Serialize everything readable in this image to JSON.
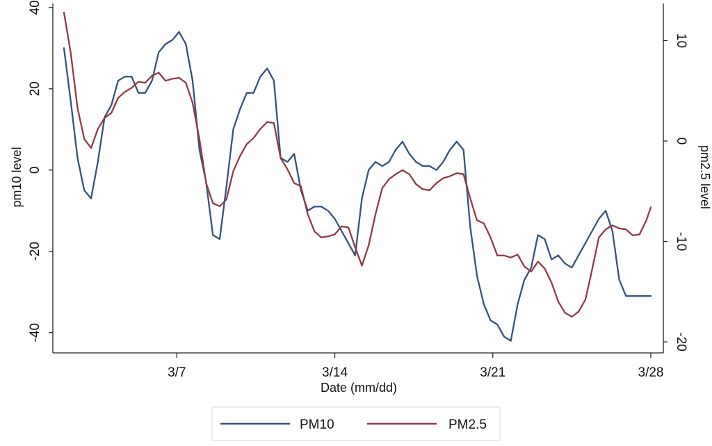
{
  "chart_data": {
    "type": "line",
    "title": "",
    "xlabel": "Date (mm/dd)",
    "ylabel_left": "pm10 level",
    "ylabel_right": "pm2.5 level",
    "x_unit": "day of month (March)",
    "xlim": [
      2,
      28
    ],
    "x_ticks": [
      {
        "value": 7,
        "label": "3/7"
      },
      {
        "value": 14,
        "label": "3/14"
      },
      {
        "value": 21,
        "label": "3/21"
      },
      {
        "value": 28,
        "label": "3/28"
      }
    ],
    "ylim_left": [
      -45,
      41
    ],
    "y_ticks_left": [
      {
        "value": 40,
        "label": "40"
      },
      {
        "value": 20,
        "label": "20"
      },
      {
        "value": 0,
        "label": "0"
      },
      {
        "value": -20,
        "label": "-20"
      },
      {
        "value": -40,
        "label": "-40"
      }
    ],
    "ylim_right": [
      -21.1,
      13.7
    ],
    "y_ticks_right": [
      {
        "value": 10,
        "label": "10"
      },
      {
        "value": 0,
        "label": "0"
      },
      {
        "value": -10,
        "label": "-10"
      },
      {
        "value": -20,
        "label": "-20"
      }
    ],
    "grid": false,
    "legend_position": "bottom",
    "series": [
      {
        "name": "PM10",
        "axis": "left",
        "color": "#34527a",
        "x": [
          2.0,
          2.3,
          2.6,
          2.9,
          3.2,
          3.5,
          3.8,
          4.1,
          4.4,
          4.7,
          5.0,
          5.3,
          5.6,
          5.9,
          6.2,
          6.5,
          6.8,
          7.1,
          7.4,
          7.7,
          8.0,
          8.3,
          8.6,
          8.9,
          9.2,
          9.5,
          9.8,
          10.1,
          10.4,
          10.7,
          11.0,
          11.3,
          11.6,
          11.9,
          12.2,
          12.5,
          12.8,
          13.1,
          13.4,
          13.7,
          14.0,
          14.3,
          14.6,
          14.9,
          15.2,
          15.5,
          15.8,
          16.1,
          16.4,
          16.7,
          17.0,
          17.3,
          17.6,
          17.9,
          18.2,
          18.5,
          18.8,
          19.1,
          19.4,
          19.7,
          20.0,
          20.3,
          20.6,
          20.9,
          21.2,
          21.5,
          21.8,
          22.1,
          22.4,
          22.7,
          23.0,
          23.3,
          23.6,
          23.9,
          24.2,
          24.5,
          24.8,
          25.1,
          25.4,
          25.7,
          26.0,
          26.3,
          26.6,
          26.9,
          27.2,
          27.5,
          27.8,
          28.0
        ],
        "values": [
          30,
          17,
          3,
          -5,
          -7,
          2,
          13,
          16,
          22,
          23,
          23,
          19,
          19,
          22,
          29,
          31,
          32,
          34,
          31,
          22,
          5,
          -3,
          -16,
          -17,
          -4,
          10,
          15,
          19,
          19,
          23,
          25,
          22,
          3,
          2,
          4,
          -5,
          -10,
          -9,
          -9,
          -10,
          -12,
          -15,
          -18,
          -21,
          -7,
          0,
          2,
          1,
          2,
          5,
          7,
          4,
          2,
          1,
          1,
          0,
          2,
          5,
          7,
          5,
          -14,
          -26,
          -33,
          -37,
          -38,
          -41,
          -42,
          -33,
          -27,
          -24,
          -16,
          -17,
          -22,
          -21,
          -23,
          -24,
          -21,
          -18,
          -15,
          -12,
          -10,
          -15,
          -27,
          -31,
          -31,
          -31,
          -31,
          -31
        ]
      },
      {
        "name": "PM2.5",
        "axis": "right",
        "color": "#8e3b44",
        "x": [
          2.0,
          2.3,
          2.6,
          2.9,
          3.2,
          3.5,
          3.8,
          4.1,
          4.4,
          4.7,
          5.0,
          5.3,
          5.6,
          5.9,
          6.2,
          6.5,
          6.8,
          7.1,
          7.4,
          7.7,
          8.0,
          8.3,
          8.6,
          8.9,
          9.2,
          9.5,
          9.8,
          10.1,
          10.4,
          10.7,
          11.0,
          11.3,
          11.6,
          11.9,
          12.2,
          12.5,
          12.8,
          13.1,
          13.4,
          13.7,
          14.0,
          14.3,
          14.6,
          14.9,
          15.2,
          15.5,
          15.8,
          16.1,
          16.4,
          16.7,
          17.0,
          17.3,
          17.6,
          17.9,
          18.2,
          18.5,
          18.8,
          19.1,
          19.4,
          19.7,
          20.0,
          20.3,
          20.6,
          20.9,
          21.2,
          21.5,
          21.8,
          22.1,
          22.4,
          22.7,
          23.0,
          23.3,
          23.6,
          23.9,
          24.2,
          24.5,
          24.8,
          25.1,
          25.4,
          25.7,
          26.0,
          26.3,
          26.6,
          26.9,
          27.2,
          27.5,
          27.8,
          28.0
        ],
        "values": [
          12.8,
          8.8,
          3.3,
          0.2,
          -0.7,
          1.2,
          2.3,
          2.8,
          4.3,
          4.9,
          5.3,
          5.9,
          5.8,
          6.5,
          6.8,
          6.0,
          6.2,
          6.3,
          5.8,
          3.8,
          0.2,
          -4.2,
          -6.2,
          -6.5,
          -5.8,
          -3.0,
          -1.5,
          -0.3,
          0.3,
          1.2,
          1.9,
          1.8,
          -1.7,
          -2.8,
          -4.2,
          -4.5,
          -7.3,
          -9.0,
          -9.6,
          -9.5,
          -9.3,
          -8.5,
          -8.6,
          -10.6,
          -12.4,
          -10.4,
          -7.3,
          -4.7,
          -3.8,
          -3.3,
          -2.9,
          -3.3,
          -4.3,
          -4.8,
          -4.9,
          -4.2,
          -3.7,
          -3.5,
          -3.2,
          -3.3,
          -5.7,
          -7.9,
          -8.2,
          -9.6,
          -11.4,
          -11.4,
          -11.6,
          -11.3,
          -12.5,
          -13.0,
          -12.0,
          -12.7,
          -14.1,
          -16.0,
          -17.1,
          -17.5,
          -17.0,
          -15.8,
          -12.8,
          -9.6,
          -8.8,
          -8.4,
          -8.7,
          -8.8,
          -9.4,
          -9.3,
          -7.9,
          -6.6
        ]
      }
    ]
  },
  "legend": {
    "items": [
      {
        "label": "PM10",
        "color": "#34527a"
      },
      {
        "label": "PM2.5",
        "color": "#8e3b44"
      }
    ]
  }
}
